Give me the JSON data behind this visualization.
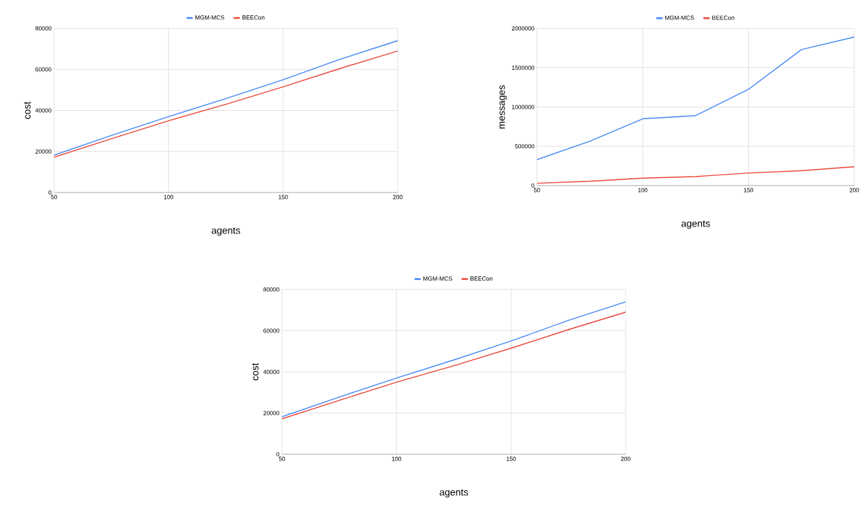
{
  "chart_data": [
    {
      "type": "line",
      "xlabel": "agents",
      "ylabel": "cost",
      "x": [
        50,
        75,
        100,
        125,
        150,
        175,
        200
      ],
      "xlim": [
        50,
        200
      ],
      "ylim": [
        0,
        80000
      ],
      "xticks": [
        50,
        100,
        150,
        200
      ],
      "yticks": [
        0,
        20000,
        40000,
        60000,
        80000
      ],
      "grid": true,
      "legend": "top",
      "marker": "none",
      "line_style": "solid",
      "series": [
        {
          "name": "MGM-MCS",
          "color": "#4285f4",
          "values": [
            18200,
            27800,
            37000,
            45800,
            55000,
            65000,
            74000
          ]
        },
        {
          "name": "BEECon",
          "color": "#ea4335",
          "values": [
            17200,
            26200,
            35000,
            43000,
            51500,
            60500,
            69000
          ]
        }
      ]
    },
    {
      "type": "line",
      "xlabel": "agents",
      "ylabel": "messages",
      "x": [
        50,
        75,
        100,
        125,
        150,
        175,
        200
      ],
      "xlim": [
        50,
        200
      ],
      "ylim": [
        0,
        2000000
      ],
      "xticks": [
        50,
        100,
        150,
        200
      ],
      "yticks": [
        0,
        500000,
        1000000,
        1500000,
        2000000
      ],
      "grid": true,
      "legend": "top",
      "marker": "none",
      "line_style": "solid",
      "series": [
        {
          "name": "MGM-MCS",
          "color": "#4285f4",
          "values": [
            330000,
            565000,
            850000,
            890000,
            1225000,
            1730000,
            1890000
          ]
        },
        {
          "name": "BEECon",
          "color": "#ea4335",
          "values": [
            30000,
            55000,
            95000,
            115000,
            160000,
            190000,
            240000
          ]
        }
      ]
    },
    {
      "type": "line",
      "xlabel": "agents",
      "ylabel": "cost",
      "x": [
        50,
        75,
        100,
        125,
        150,
        175,
        200
      ],
      "xlim": [
        50,
        200
      ],
      "ylim": [
        0,
        80000
      ],
      "xticks": [
        50,
        100,
        150,
        200
      ],
      "yticks": [
        0,
        20000,
        40000,
        60000,
        80000
      ],
      "grid": true,
      "legend": "top",
      "marker": "none",
      "line_style": "solid",
      "series": [
        {
          "name": "MGM-MCS",
          "color": "#4285f4",
          "values": [
            18200,
            27800,
            37000,
            45800,
            55000,
            65000,
            74000
          ]
        },
        {
          "name": "BEECon",
          "color": "#ea4335",
          "values": [
            17200,
            26200,
            35000,
            43000,
            51500,
            60500,
            69000
          ]
        }
      ]
    }
  ]
}
